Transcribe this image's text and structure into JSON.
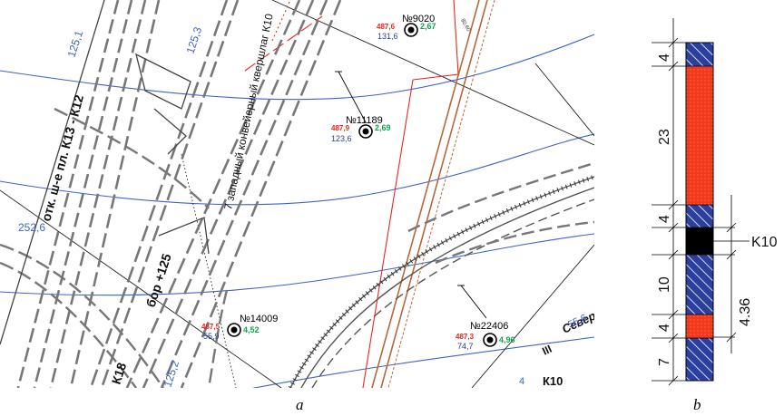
{
  "panel_a": {
    "caption": "a",
    "wells": [
      {
        "id": "well-9020",
        "label": "№9020",
        "red": "487,6",
        "green": "2,67",
        "blue": "131,6"
      },
      {
        "id": "well-11189",
        "label": "№11189",
        "red": "487,9",
        "green": "2,69",
        "blue": "123,6"
      },
      {
        "id": "well-14009",
        "label": "№14009",
        "red": "487,5",
        "green": "4,52",
        "blue": "55,9"
      },
      {
        "id": "well-22406",
        "label": "№22406",
        "red": "487,3",
        "green": "4,96",
        "blue": "74,7"
      }
    ],
    "texts": {
      "conveyor": "7 западный конвейерный квершлаг К10",
      "otk": "отк. ш-е пл. К13 - К12",
      "bor": "бор +125",
      "k18": "К18",
      "k10": "К10",
      "sever": "Северн",
      "roman3": "III",
      "v1251": "125,1",
      "v1253": "125,3",
      "v2526": "252,6",
      "v1252": "125,2",
      "v556": "55,6",
      "v4": "4",
      "small": "80,60"
    },
    "colors": {
      "red": "#e8281e",
      "green": "#12a54a",
      "blue": "#2b3f9e",
      "contour": "#3e63c8",
      "rail": "#b8683a"
    }
  },
  "panel_b": {
    "caption": "b",
    "thickness_labels": [
      "4",
      "23",
      "4",
      "10",
      "4",
      "7"
    ],
    "seam_label": "K10",
    "offset_label": "4.36",
    "layers": [
      {
        "name": "hatched-rock",
        "thickness": 4,
        "color": "#2b3f9e"
      },
      {
        "name": "red-layer",
        "thickness": 23,
        "color": "#f4381c"
      },
      {
        "name": "hatched-rock",
        "thickness": 4,
        "color": "#2b3f9e"
      },
      {
        "name": "coal-seam",
        "thickness": 1.5,
        "color": "#000000"
      },
      {
        "name": "hatched-rock",
        "thickness": 10,
        "color": "#2b3f9e"
      },
      {
        "name": "red-layer",
        "thickness": 4,
        "color": "#f4381c"
      },
      {
        "name": "hatched-rock",
        "thickness": 7,
        "color": "#2b3f9e"
      }
    ]
  }
}
